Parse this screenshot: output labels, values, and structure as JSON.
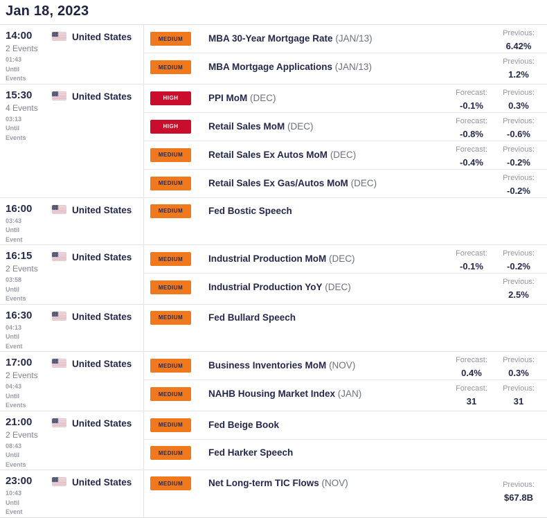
{
  "header": {
    "date": "Jan 18, 2023"
  },
  "labels": {
    "forecast": "Forecast:",
    "previous": "Previous:"
  },
  "colors": {
    "medium_badge": "#f0781d",
    "high_badge": "#cb0d2d",
    "text_navy": "#24284a",
    "text_gray": "#9496a1",
    "divider": "#e3e3e7"
  },
  "icons": {
    "flag": "us-flag-icon"
  },
  "blocks": [
    {
      "time": "14:00",
      "events_count": "2 Events",
      "countdown": [
        "01:43",
        "Until",
        "Events"
      ],
      "country": "United States",
      "events": [
        {
          "importance": "MEDIUM",
          "name": "MBA 30-Year Mortgage Rate",
          "period": "(JAN/13)",
          "forecast": null,
          "previous": "6.42%"
        },
        {
          "importance": "MEDIUM",
          "name": "MBA Mortgage Applications",
          "period": "(JAN/13)",
          "forecast": null,
          "previous": "1.2%"
        }
      ]
    },
    {
      "time": "15:30",
      "events_count": "4 Events",
      "countdown": [
        "03:13",
        "Until",
        "Events"
      ],
      "country": "United States",
      "events": [
        {
          "importance": "HIGH",
          "name": "PPI MoM",
          "period": "(DEC)",
          "forecast": "-0.1%",
          "previous": "0.3%"
        },
        {
          "importance": "HIGH",
          "name": "Retail Sales MoM",
          "period": "(DEC)",
          "forecast": "-0.8%",
          "previous": "-0.6%"
        },
        {
          "importance": "MEDIUM",
          "name": "Retail Sales Ex Autos MoM",
          "period": "(DEC)",
          "forecast": "-0.4%",
          "previous": "-0.2%"
        },
        {
          "importance": "MEDIUM",
          "name": "Retail Sales Ex Gas/Autos MoM",
          "period": "(DEC)",
          "forecast": null,
          "previous": "-0.2%"
        }
      ]
    },
    {
      "time": "16:00",
      "events_count": null,
      "countdown": [
        "03:43",
        "Until",
        "Event"
      ],
      "country": "United States",
      "events": [
        {
          "importance": "MEDIUM",
          "name": "Fed Bostic Speech",
          "period": null,
          "forecast": null,
          "previous": null
        }
      ]
    },
    {
      "time": "16:15",
      "events_count": "2 Events",
      "countdown": [
        "03:58",
        "Until",
        "Events"
      ],
      "country": "United States",
      "events": [
        {
          "importance": "MEDIUM",
          "name": "Industrial Production MoM",
          "period": "(DEC)",
          "forecast": "-0.1%",
          "previous": "-0.2%"
        },
        {
          "importance": "MEDIUM",
          "name": "Industrial Production YoY",
          "period": "(DEC)",
          "forecast": null,
          "previous": "2.5%"
        }
      ]
    },
    {
      "time": "16:30",
      "events_count": null,
      "countdown": [
        "04:13",
        "Until",
        "Event"
      ],
      "country": "United States",
      "events": [
        {
          "importance": "MEDIUM",
          "name": "Fed Bullard Speech",
          "period": null,
          "forecast": null,
          "previous": null
        }
      ]
    },
    {
      "time": "17:00",
      "events_count": "2 Events",
      "countdown": [
        "04:43",
        "Until",
        "Events"
      ],
      "country": "United States",
      "events": [
        {
          "importance": "MEDIUM",
          "name": "Business Inventories MoM",
          "period": "(NOV)",
          "forecast": "0.4%",
          "previous": "0.3%"
        },
        {
          "importance": "MEDIUM",
          "name": "NAHB Housing Market Index",
          "period": "(JAN)",
          "forecast": "31",
          "previous": "31"
        }
      ]
    },
    {
      "time": "21:00",
      "events_count": "2 Events",
      "countdown": [
        "08:43",
        "Until",
        "Events"
      ],
      "country": "United States",
      "events": [
        {
          "importance": "MEDIUM",
          "name": "Fed Beige Book",
          "period": null,
          "forecast": null,
          "previous": null
        },
        {
          "importance": "MEDIUM",
          "name": "Fed Harker Speech",
          "period": null,
          "forecast": null,
          "previous": null
        }
      ]
    },
    {
      "time": "23:00",
      "events_count": null,
      "countdown": [
        "10:43",
        "Until",
        "Event"
      ],
      "country": "United States",
      "events": [
        {
          "importance": "MEDIUM",
          "name": "Net Long-term TIC Flows",
          "period": "(NOV)",
          "forecast": null,
          "previous": "$67.8B"
        }
      ]
    }
  ]
}
